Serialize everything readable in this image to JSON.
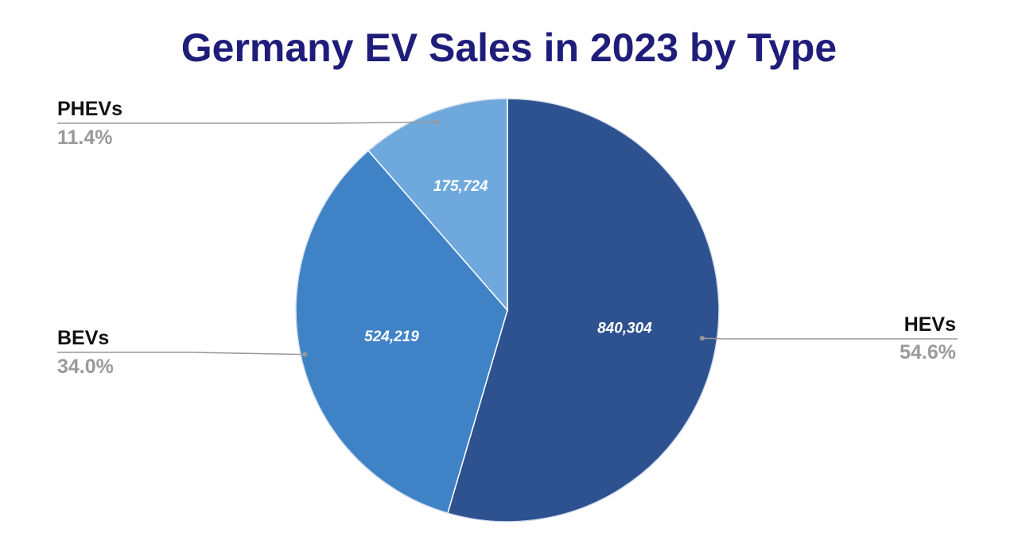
{
  "chart_data": {
    "type": "pie",
    "title": "Germany EV Sales in 2023 by Type",
    "slices": [
      {
        "name": "HEVs",
        "value": 840304,
        "value_label": "840,304",
        "percent_label": "54.6%",
        "color": "#2e528f"
      },
      {
        "name": "BEVs",
        "value": 524219,
        "value_label": "524,219",
        "percent_label": "34.0%",
        "color": "#3f83c6"
      },
      {
        "name": "PHEVs",
        "value": 175724,
        "value_label": "175,724",
        "percent_label": "11.4%",
        "color": "#6fa8dc"
      }
    ],
    "start_angle_deg": 0,
    "direction": "clockwise",
    "legend": "none",
    "labels": "outside with leader lines"
  },
  "colors": {
    "title": "#1f1d7a",
    "slice_border": "#ffffff",
    "leader_line": "#999999",
    "category_text": "#111111",
    "percent_text": "#9a9a9a",
    "value_text": "#ffffff"
  }
}
